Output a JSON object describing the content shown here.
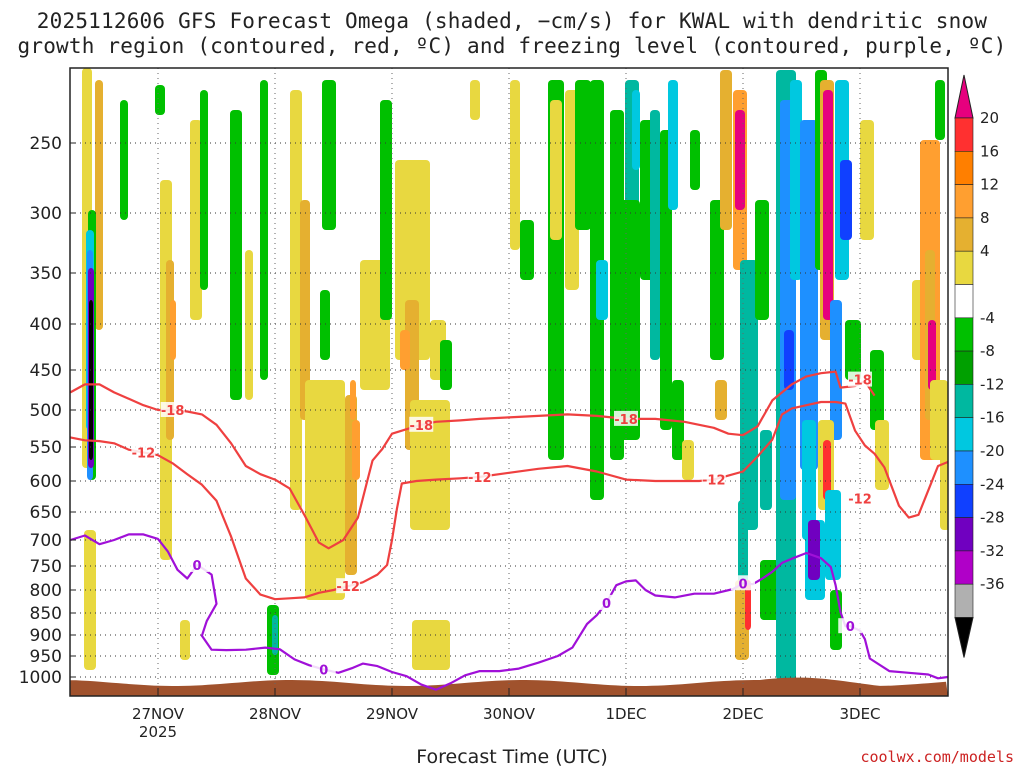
{
  "header": {
    "title_line1": "2025112606 GFS Forecast Omega (shaded, −cm/s) for KWAL with dendritic snow",
    "title_line2": "growth region (contoured, red, ºC) and freezing level (contoured, purple, ºC)"
  },
  "footer": {
    "xlabel": "Forecast Time (UTC)",
    "credit": "coolwx.com/models"
  },
  "chart_data": {
    "type": "heatmap",
    "title": "2025112606 GFS Forecast Omega (shaded, −cm/s) for KWAL with dendritic snow growth region (contoured, red, ºC) and freezing level (contoured, purple, ºC)",
    "xlabel": "Forecast Time (UTC)",
    "ylabel": "",
    "y_ticks": [
      250,
      300,
      350,
      400,
      450,
      500,
      550,
      600,
      650,
      700,
      750,
      800,
      850,
      900,
      950,
      1000
    ],
    "x_ticks": [
      {
        "label": "27NOV",
        "sub": "2025",
        "hours": 0
      },
      {
        "label": "28NOV",
        "hours": 24
      },
      {
        "label": "29NOV",
        "hours": 48
      },
      {
        "label": "30NOV",
        "hours": 72
      },
      {
        "label": "1DEC",
        "hours": 96
      },
      {
        "label": "2DEC",
        "hours": 120
      },
      {
        "label": "3DEC",
        "hours": 144
      }
    ],
    "xlim_hours": [
      -18,
      162
    ],
    "ylim_hPa": [
      200,
      1030
    ],
    "grid": true,
    "colorbar": {
      "labels": [
        20,
        16,
        12,
        8,
        4,
        -4,
        -8,
        -12,
        -16,
        -20,
        -24,
        -28,
        -32,
        -36
      ],
      "colors": [
        "#e6007e",
        "#ff3030",
        "#ff7f00",
        "#ff9f30",
        "#e5b030",
        "#e8d840",
        "#ffffff",
        "#00c000",
        "#00a000",
        "#00b8a0",
        "#00c8e0",
        "#1e90ff",
        "#1040ff",
        "#7000c0",
        "#b000c8",
        "#b0b0b0",
        "#000000"
      ]
    },
    "contour_labels": {
      "red": [
        "-18",
        "-12"
      ],
      "purple": [
        "0"
      ]
    },
    "series": [
      {
        "name": "-18",
        "color": "#ef4040",
        "points": [
          [
            -18,
            478
          ],
          [
            -15,
            468
          ],
          [
            -12,
            468
          ],
          [
            -9,
            478
          ],
          [
            -6,
            486
          ],
          [
            -3,
            494
          ],
          [
            0,
            500
          ],
          [
            3,
            500
          ],
          [
            6,
            502
          ],
          [
            9,
            506
          ],
          [
            12,
            520
          ],
          [
            15,
            545
          ],
          [
            18,
            578
          ],
          [
            21,
            590
          ],
          [
            24,
            598
          ],
          [
            27,
            612
          ],
          [
            30,
            655
          ],
          [
            33,
            705
          ],
          [
            35,
            716
          ],
          [
            38,
            700
          ],
          [
            41,
            660
          ],
          [
            43,
            598
          ],
          [
            44,
            570
          ],
          [
            46,
            553
          ],
          [
            48,
            532
          ],
          [
            51,
            526
          ],
          [
            54,
            520
          ],
          [
            57,
            516
          ],
          [
            62,
            514
          ],
          [
            66,
            512
          ],
          [
            72,
            510
          ],
          [
            78,
            508
          ],
          [
            84,
            506
          ],
          [
            90,
            508
          ],
          [
            96,
            512
          ],
          [
            102,
            512
          ],
          [
            108,
            516
          ],
          [
            111,
            520
          ],
          [
            114,
            524
          ],
          [
            117,
            532
          ],
          [
            120,
            534
          ],
          [
            123,
            522
          ],
          [
            126,
            488
          ],
          [
            128,
            478
          ],
          [
            130,
            468
          ],
          [
            133,
            458
          ],
          [
            136,
            454
          ],
          [
            139,
            452
          ],
          [
            140,
            472
          ],
          [
            143,
            470
          ],
          [
            145,
            464
          ],
          [
            147,
            482
          ]
        ]
      },
      {
        "name": "-12",
        "color": "#ef4040",
        "points": [
          [
            -18,
            537
          ],
          [
            -15,
            541
          ],
          [
            -12,
            542
          ],
          [
            -9,
            545
          ],
          [
            -6,
            554
          ],
          [
            -3,
            558
          ],
          [
            0,
            562
          ],
          [
            3,
            574
          ],
          [
            6,
            590
          ],
          [
            9,
            606
          ],
          [
            12,
            632
          ],
          [
            15,
            694
          ],
          [
            18,
            776
          ],
          [
            21,
            810
          ],
          [
            24,
            820
          ],
          [
            27,
            818
          ],
          [
            30,
            816
          ],
          [
            33,
            806
          ],
          [
            36,
            800
          ],
          [
            39,
            792
          ],
          [
            42,
            784
          ],
          [
            45,
            768
          ],
          [
            47,
            748
          ],
          [
            48,
            700
          ],
          [
            49,
            645
          ],
          [
            50,
            604
          ],
          [
            53,
            600
          ],
          [
            57,
            598
          ],
          [
            62,
            596
          ],
          [
            66,
            594
          ],
          [
            72,
            588
          ],
          [
            78,
            582
          ],
          [
            84,
            578
          ],
          [
            90,
            586
          ],
          [
            96,
            598
          ],
          [
            102,
            600
          ],
          [
            108,
            600
          ],
          [
            111,
            600
          ],
          [
            114,
            598
          ],
          [
            117,
            592
          ],
          [
            120,
            586
          ],
          [
            123,
            564
          ],
          [
            126,
            540
          ],
          [
            128,
            506
          ],
          [
            130,
            498
          ],
          [
            133,
            494
          ],
          [
            136,
            490
          ],
          [
            139,
            490
          ],
          [
            141,
            492
          ],
          [
            143,
            528
          ],
          [
            145,
            548
          ],
          [
            147,
            560
          ],
          [
            149,
            580
          ],
          [
            152,
            640
          ],
          [
            154,
            660
          ],
          [
            156,
            655
          ],
          [
            158,
            615
          ],
          [
            160,
            578
          ],
          [
            162,
            572
          ]
        ]
      },
      {
        "name": "0",
        "color": "#a010d8",
        "points": [
          [
            -18,
            700
          ],
          [
            -15,
            692
          ],
          [
            -12,
            708
          ],
          [
            -9,
            700
          ],
          [
            -6,
            690
          ],
          [
            -3,
            690
          ],
          [
            0,
            698
          ],
          [
            2,
            722
          ],
          [
            4,
            758
          ],
          [
            6,
            776
          ],
          [
            8,
            748
          ],
          [
            9,
            754
          ],
          [
            11,
            768
          ],
          [
            12,
            830
          ],
          [
            10,
            868
          ],
          [
            9,
            902
          ],
          [
            11,
            935
          ],
          [
            14,
            936
          ],
          [
            18,
            935
          ],
          [
            22,
            930
          ],
          [
            25,
            934
          ],
          [
            28,
            958
          ],
          [
            31,
            972
          ],
          [
            34,
            982
          ],
          [
            37,
            990
          ],
          [
            40,
            978
          ],
          [
            42,
            968
          ],
          [
            45,
            974
          ],
          [
            48,
            988
          ],
          [
            51,
            998
          ],
          [
            54,
            1012
          ],
          [
            57,
            1020
          ],
          [
            60,
            1010
          ],
          [
            63,
            996
          ],
          [
            66,
            986
          ],
          [
            70,
            986
          ],
          [
            74,
            980
          ],
          [
            78,
            966
          ],
          [
            82,
            950
          ],
          [
            85,
            930
          ],
          [
            88,
            875
          ],
          [
            90,
            855
          ],
          [
            92,
            828
          ],
          [
            94,
            790
          ],
          [
            96,
            782
          ],
          [
            98,
            780
          ],
          [
            100,
            800
          ],
          [
            102,
            812
          ],
          [
            106,
            816
          ],
          [
            110,
            808
          ],
          [
            114,
            808
          ],
          [
            118,
            798
          ],
          [
            120,
            786
          ],
          [
            122,
            788
          ],
          [
            124,
            776
          ],
          [
            126,
            762
          ],
          [
            128,
            744
          ],
          [
            130,
            736
          ],
          [
            133,
            725
          ],
          [
            136,
            735
          ],
          [
            138,
            752
          ],
          [
            139,
            790
          ],
          [
            140,
            848
          ],
          [
            141,
            880
          ],
          [
            142,
            880
          ],
          [
            144,
            890
          ],
          [
            145,
            910
          ],
          [
            146,
            956
          ],
          [
            150,
            986
          ],
          [
            154,
            990
          ],
          [
            158,
            994
          ],
          [
            160,
            1002
          ],
          [
            162,
            1000
          ]
        ]
      }
    ]
  }
}
